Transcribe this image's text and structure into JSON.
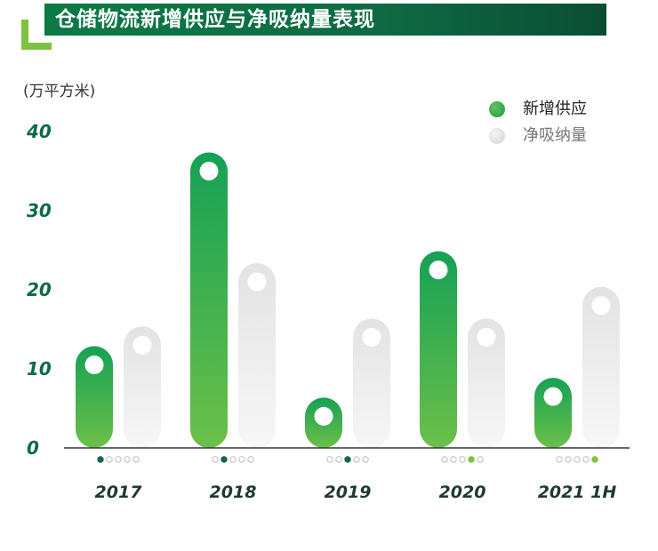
{
  "header": {
    "title": "仓储物流新增供应与净吸纳量表现"
  },
  "unit": "(万平方米)",
  "legend": [
    {
      "label": "新增供应",
      "color": "#2fae4f"
    },
    {
      "label": "净吸纳量",
      "color": "#dcdcdc"
    }
  ],
  "chart_data": {
    "type": "bar",
    "categories": [
      "2017",
      "2018",
      "2019",
      "2020",
      "2021 1H"
    ],
    "series": [
      {
        "name": "新增供应",
        "values": [
          10.5,
          35,
          4,
          22.5,
          6.5
        ],
        "color": "#2fae4f"
      },
      {
        "name": "净吸纳量",
        "values": [
          13,
          21,
          14,
          14,
          18
        ],
        "color": "#dcdcdc"
      }
    ],
    "yticks": [
      "0",
      "10",
      "20",
      "30",
      "40"
    ],
    "ylim": [
      0,
      40
    ],
    "ylabel": "(万平方米)",
    "legend_position": "top-right",
    "grid": false
  }
}
